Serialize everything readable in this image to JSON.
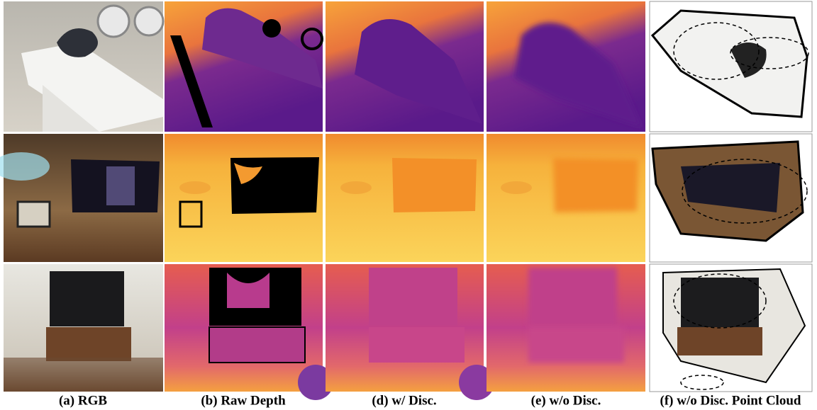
{
  "captions": [
    "(a) RGB",
    "(b) Raw Depth",
    "(d) w/ Disc.",
    "(e) w/o Disc.",
    "(f) w/o Disc. Point Cloud"
  ]
}
